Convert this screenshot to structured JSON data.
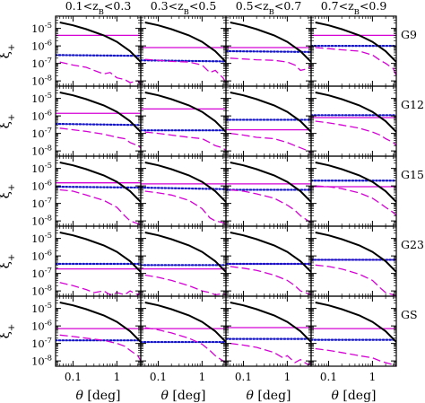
{
  "chart_data": {
    "type": "line",
    "layout": "5 rows x 4 columns grid of panels",
    "column_titles": [
      "0.1<z_B<0.3",
      "0.3<z_B<0.5",
      "0.5<z_B<0.7",
      "0.7<z_B<0.9"
    ],
    "row_labels": [
      "G9",
      "G12",
      "G15",
      "G23",
      "GS"
    ],
    "ylabel": "ξ+",
    "xlabel": "θ [deg]",
    "x_scale": "log",
    "y_scale": "log",
    "xlim": [
      0.04,
      3.5
    ],
    "ylim": [
      5e-09,
      5e-05
    ],
    "x_ticks": [
      0.1,
      1
    ],
    "x_tick_labels": [
      "0.1",
      "1"
    ],
    "y_tick_labels": [
      "10",
      "10",
      "10",
      "10"
    ],
    "y_tick_exponents": [
      "-5",
      "-6",
      "-7",
      "-8"
    ],
    "y_tick_values": [
      1e-05,
      1e-06,
      1e-07,
      1e-08
    ],
    "series_styles": [
      {
        "key": "signal",
        "color": "#000000",
        "style": "solid"
      },
      {
        "key": "horizontal",
        "color": "#d400d4",
        "style": "solid"
      },
      {
        "key": "dotted",
        "color": "#1515c8",
        "style": "dotted"
      },
      {
        "key": "dashed",
        "color": "#d400d4",
        "style": "dashed"
      }
    ],
    "signal_curve": {
      "x": [
        0.05,
        0.1,
        0.2,
        0.5,
        1,
        2,
        3.5
      ],
      "y": [
        2.2e-05,
        1.5e-05,
        9e-06,
        4e-06,
        1.7e-06,
        5e-07,
        1.2e-07
      ]
    },
    "panels": [
      [
        {
          "horizontal": 4e-06,
          "dotted": [
            3e-07,
            2.7e-07
          ],
          "dashed": {
            "x": [
              0.05,
              0.1,
              0.2,
              0.3,
              0.5,
              0.7,
              1,
              1.5,
              2,
              3,
              3.5
            ],
            "y": [
              1.2e-07,
              8e-08,
              6e-08,
              4e-08,
              2.5e-08,
              3e-08,
              1.5e-08,
              1.2e-08,
              8e-09,
              1e-08,
              6e-09
            ]
          }
        },
        {
          "horizontal": 8e-07,
          "dotted": [
            1.5e-07,
            1.3e-07
          ],
          "dashed": {
            "x": [
              0.05,
              0.1,
              0.2,
              0.5,
              1,
              1.5,
              2,
              3,
              3.5
            ],
            "y": [
              1.7e-07,
              1.5e-07,
              1.3e-07,
              1.2e-07,
              8e-08,
              3e-08,
              4e-08,
              1.5e-08,
              8e-09
            ]
          }
        },
        {
          "horizontal": 8e-07,
          "dotted": [
            5e-07,
            4.5e-07
          ],
          "dashed": {
            "x": [
              0.05,
              0.1,
              0.2,
              0.5,
              1,
              1.5,
              2,
              3,
              3.5
            ],
            "y": [
              2e-07,
              1.8e-07,
              1.6e-07,
              1.5e-07,
              1.2e-07,
              8e-08,
              4e-08,
              5e-08,
              8e-08
            ]
          }
        },
        {
          "horizontal": 4e-06,
          "dotted": [
            1e-06,
            1e-06
          ],
          "dashed": {
            "x": [
              0.05,
              0.1,
              0.2,
              0.5,
              1,
              1.5,
              2,
              3,
              3.5
            ],
            "y": [
              8e-07,
              7e-07,
              6e-07,
              5e-07,
              3e-07,
              1.5e-07,
              1e-07,
              5e-08,
              2e-08
            ]
          }
        }
      ],
      [
        {
          "horizontal": 1.4e-06,
          "dotted": [
            3.5e-07,
            3e-07
          ],
          "dashed": {
            "x": [
              0.05,
              0.1,
              0.2,
              0.5,
              1,
              1.5,
              2,
              3,
              3.5
            ],
            "y": [
              2e-07,
              1.6e-07,
              1.3e-07,
              9e-08,
              6e-08,
              5e-08,
              3e-08,
              2e-08,
              1.5e-08
            ]
          }
        },
        {
          "horizontal": 2.5e-06,
          "dotted": [
            1.5e-07,
            1.5e-07
          ],
          "dashed": {
            "x": [
              0.05,
              0.1,
              0.2,
              0.5,
              1,
              1.5,
              2,
              3,
              3.5
            ],
            "y": [
              1.2e-07,
              1e-07,
              8e-08,
              6e-08,
              5e-08,
              3e-08,
              2e-08,
              1.5e-08,
              1e-08
            ]
          }
        },
        {
          "horizontal": 1.6e-07,
          "dotted": [
            6e-07,
            6e-07
          ],
          "dashed": {
            "x": [
              0.05,
              0.1,
              0.2,
              0.5,
              1,
              1.5,
              2,
              3,
              3.5
            ],
            "y": [
              1e-07,
              8e-08,
              6e-08,
              5e-08,
              3e-08,
              2e-08,
              1.5e-08,
              1e-08,
              7e-09
            ]
          }
        },
        {
          "horizontal": 8e-07,
          "dotted": [
            1.1e-06,
            1.1e-06
          ],
          "dashed": {
            "x": [
              0.05,
              0.1,
              0.2,
              0.5,
              1,
              1.5,
              2,
              3,
              3.5
            ],
            "y": [
              5e-07,
              4e-07,
              3e-07,
              2e-07,
              1.2e-07,
              8e-08,
              5e-08,
              3e-08,
              2e-08
            ]
          }
        }
      ],
      [
        {
          "horizontal": 1.5e-06,
          "dotted": [
            9e-07,
            8e-07
          ],
          "dashed": {
            "x": [
              0.05,
              0.1,
              0.2,
              0.5,
              1,
              1.5,
              2,
              3,
              3.5
            ],
            "y": [
              6e-07,
              5e-07,
              3e-07,
              1.5e-07,
              6e-08,
              2e-08,
              1e-08,
              7e-09,
              6e-09
            ]
          }
        },
        {
          "horizontal": 1.3e-06,
          "dotted": [
            8e-07,
            6.5e-07
          ],
          "dashed": {
            "x": [
              0.05,
              0.1,
              0.2,
              0.5,
              1,
              1.5,
              2,
              3,
              3.5
            ],
            "y": [
              5e-07,
              4e-07,
              3e-07,
              1.5e-07,
              5e-08,
              1.5e-08,
              1e-08,
              8e-09,
              6e-09
            ]
          }
        },
        {
          "horizontal": 1.3e-06,
          "dotted": [
            6e-07,
            6e-07
          ],
          "dashed": {
            "x": [
              0.05,
              0.1,
              0.2,
              0.5,
              1,
              1.5,
              2,
              3,
              3.5
            ],
            "y": [
              6e-07,
              5e-07,
              3.5e-07,
              2e-07,
              8e-08,
              4e-08,
              2e-08,
              1e-08,
              8e-09
            ]
          }
        },
        {
          "horizontal": 9e-07,
          "dotted": [
            2e-06,
            2e-06
          ],
          "dashed": {
            "x": [
              0.05,
              0.1,
              0.2,
              0.5,
              1,
              1.5,
              2,
              3,
              3.5
            ],
            "y": [
              1e-06,
              9e-07,
              7e-07,
              4e-07,
              2e-07,
              1e-07,
              6e-08,
              3e-08,
              2e-08
            ]
          }
        }
      ],
      [
        {
          "horizontal": 1.8e-07,
          "dotted": [
            3.5e-07,
            3.5e-07
          ],
          "dashed": {
            "x": [
              0.05,
              0.1,
              0.2,
              0.3,
              0.5,
              0.7,
              1,
              1.5,
              2,
              3,
              3.5
            ],
            "y": [
              3e-08,
              2e-08,
              1.2e-08,
              8e-09,
              1e-08,
              6e-09,
              8e-09,
              6e-09,
              1e-08,
              6e-09,
              8e-09
            ]
          }
        },
        {
          "horizontal": 1.8e-07,
          "dotted": [
            3e-07,
            3e-07
          ],
          "dashed": {
            "x": [
              0.05,
              0.1,
              0.2,
              0.5,
              1,
              1.5,
              2,
              3,
              3.5
            ],
            "y": [
              8e-08,
              6e-08,
              4e-08,
              2e-08,
              1e-08,
              8e-09,
              6e-09,
              7e-09,
              6e-09
            ]
          }
        },
        {
          "horizontal": 3.5e-07,
          "dotted": [
            3.5e-07,
            3.5e-07
          ],
          "dashed": {
            "x": [
              0.05,
              0.1,
              0.2,
              0.5,
              1,
              1.5,
              2,
              3,
              3.5
            ],
            "y": [
              2.5e-07,
              2e-07,
              1.5e-07,
              8e-08,
              4e-08,
              2e-08,
              1e-08,
              7e-09,
              6e-09
            ]
          }
        },
        {
          "horizontal": 6e-07,
          "dotted": [
            6e-07,
            6e-07
          ],
          "dashed": {
            "x": [
              0.05,
              0.1,
              0.2,
              0.5,
              1,
              1.5,
              2,
              3,
              3.5
            ],
            "y": [
              3e-07,
              2.5e-07,
              1.8e-07,
              9e-08,
              4e-08,
              1.5e-08,
              8e-09,
              6e-09,
              5e-09
            ]
          }
        }
      ],
      [
        {
          "horizontal": 7e-07,
          "dotted": [
            1.5e-07,
            1.5e-07
          ],
          "dashed": {
            "x": [
              0.05,
              0.1,
              0.2,
              0.5,
              1,
              1.5,
              2,
              3,
              3.5
            ],
            "y": [
              3e-07,
              2.5e-07,
              2e-07,
              1.5e-07,
              1e-07,
              7e-08,
              4e-08,
              2e-08,
              1e-08
            ]
          }
        },
        {
          "horizontal": 7e-07,
          "dotted": [
            1.2e-07,
            1.2e-07
          ],
          "dashed": {
            "x": [
              0.05,
              0.1,
              0.2,
              0.5,
              1,
              1.5,
              2,
              3,
              3.5
            ],
            "y": [
              8e-07,
              6e-07,
              4e-07,
              2e-07,
              9e-08,
              4e-08,
              2e-08,
              1e-08,
              8e-09
            ]
          }
        },
        {
          "horizontal": 8e-07,
          "dotted": [
            1.8e-07,
            1.8e-07
          ],
          "dashed": {
            "x": [
              0.05,
              0.1,
              0.2,
              0.5,
              0.8,
              1,
              1.5,
              2,
              3,
              3.5
            ],
            "y": [
              1e-07,
              8e-08,
              6e-08,
              3e-08,
              1.5e-08,
              2e-08,
              8e-09,
              1.2e-08,
              6e-09,
              8e-09
            ]
          }
        },
        {
          "horizontal": 7e-07,
          "dotted": [
            1.6e-07,
            1.6e-07
          ],
          "dashed": {
            "x": [
              0.05,
              0.1,
              0.2,
              0.5,
              1,
              1.5,
              2,
              3,
              3.5
            ],
            "y": [
              5e-08,
              4e-08,
              3e-08,
              2e-08,
              1.5e-08,
              1e-08,
              8e-09,
              6e-09,
              5e-09
            ]
          }
        }
      ]
    ]
  }
}
